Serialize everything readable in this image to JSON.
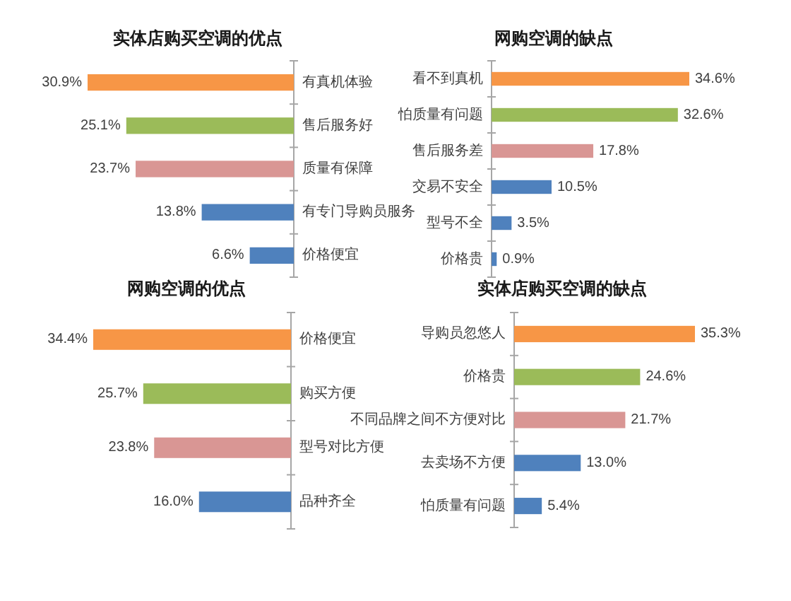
{
  "chart_data": [
    {
      "type": "bar",
      "orientation": "horizontal",
      "title": "实体店购买空调的优点",
      "categories": [
        "有真机体验",
        "售后服务好",
        "质量有保障",
        "有专门导购员服务",
        "价格便宜"
      ],
      "values": [
        30.9,
        25.1,
        23.7,
        13.8,
        6.6
      ],
      "value_labels": [
        "30.9%",
        "25.1%",
        "23.7%",
        "13.8%",
        "6.6%"
      ],
      "colors": [
        "#f79646",
        "#9bbb59",
        "#d99694",
        "#4f81bd",
        "#4f81bd"
      ],
      "tick_labels": "y"
    },
    {
      "type": "bar",
      "orientation": "horizontal",
      "title": "网购空调的缺点",
      "categories": [
        "看不到真机",
        "怕质量有问题",
        "售后服务差",
        "交易不安全",
        "型号不全",
        "价格贵"
      ],
      "values": [
        34.6,
        32.6,
        17.8,
        10.5,
        3.5,
        0.9
      ],
      "value_labels": [
        "34.6%",
        "32.6%",
        "17.8%",
        "10.5%",
        "3.5%",
        "0.9%"
      ],
      "colors": [
        "#f79646",
        "#9bbb59",
        "#d99694",
        "#4f81bd",
        "#4f81bd",
        "#4f81bd"
      ],
      "tick_labels": "y"
    },
    {
      "type": "bar",
      "orientation": "horizontal",
      "title": "网购空调的优点",
      "categories": [
        "价格便宜",
        "购买方便",
        "型号对比方便",
        "品种齐全"
      ],
      "values": [
        34.4,
        25.7,
        23.8,
        16.0
      ],
      "value_labels": [
        "34.4%",
        "25.7%",
        "23.8%",
        "16.0%"
      ],
      "colors": [
        "#f79646",
        "#9bbb59",
        "#d99694",
        "#4f81bd"
      ],
      "tick_labels": "y"
    },
    {
      "type": "bar",
      "orientation": "horizontal",
      "title": "实体店购买空调的缺点",
      "categories": [
        "导购员忽悠人",
        "价格贵",
        "不同品牌之间不方便对比",
        "去卖场不方便",
        "怕质量有问题"
      ],
      "values": [
        35.3,
        24.6,
        21.7,
        13.0,
        5.4
      ],
      "value_labels": [
        "35.3%",
        "24.6%",
        "21.7%",
        "13.0%",
        "5.4%"
      ],
      "colors": [
        "#f79646",
        "#9bbb59",
        "#d99694",
        "#4f81bd",
        "#4f81bd"
      ],
      "tick_labels": "y"
    }
  ]
}
